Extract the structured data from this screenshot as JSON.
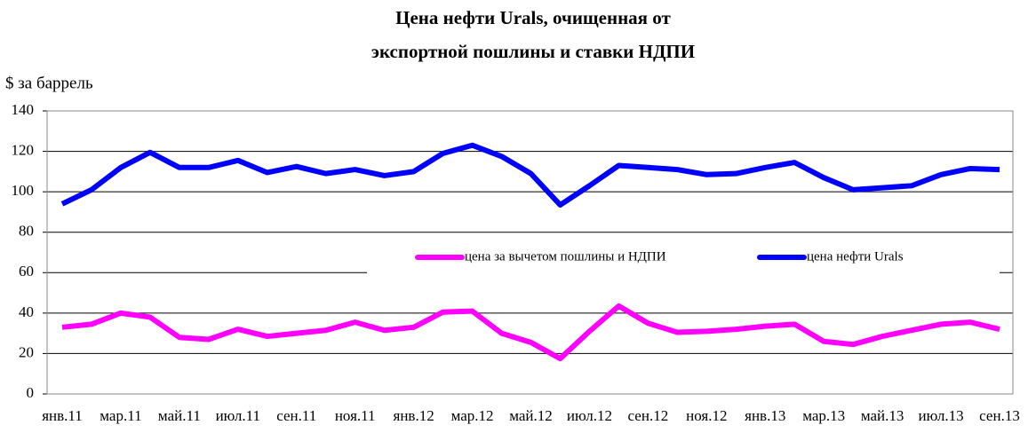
{
  "chart_data": {
    "type": "line",
    "title": [
      "Цена нефти Urals, очищенная от",
      "экспортной пошлины и ставки НДПИ"
    ],
    "y_label": "$ за баррель",
    "categories": [
      "янв.11",
      null,
      "мар.11",
      null,
      "май.11",
      null,
      "июл.11",
      null,
      "сен.11",
      null,
      "ноя.11",
      null,
      "янв.12",
      null,
      "мар.12",
      null,
      "май.12",
      null,
      "июл.12",
      null,
      "сен.12",
      null,
      "ноя.12",
      null,
      "янв.13",
      null,
      "мар.13",
      null,
      "май.13",
      null,
      "июл.13",
      null,
      "сен.13"
    ],
    "series": [
      {
        "name": "цена за вычетом пошлины и НДПИ",
        "color": "#ff00ff",
        "values": [
          33,
          34.5,
          40,
          38,
          28,
          27,
          32,
          28.5,
          30,
          31.5,
          35.5,
          31.5,
          33,
          40.5,
          41,
          30,
          25.5,
          17.5,
          31,
          43.5,
          35,
          30.5,
          31,
          32,
          33.5,
          34.5,
          26,
          24.5,
          28.5,
          31.5,
          34.5,
          35.5,
          32
        ]
      },
      {
        "name": "цена нефти Urals",
        "color": "#0000ff",
        "values": [
          94,
          101,
          112,
          119.5,
          112,
          112,
          115.5,
          109.5,
          112.5,
          109,
          111,
          108,
          110,
          119,
          123,
          117.5,
          109,
          93.5,
          103,
          113,
          112,
          111,
          108.5,
          109,
          112,
          114.5,
          107,
          101,
          102,
          103,
          108.5,
          111.5,
          111
        ]
      }
    ],
    "ylim": [
      0,
      140
    ],
    "yticks": [
      0,
      20,
      40,
      60,
      80,
      100,
      120,
      140
    ],
    "grid": true
  }
}
